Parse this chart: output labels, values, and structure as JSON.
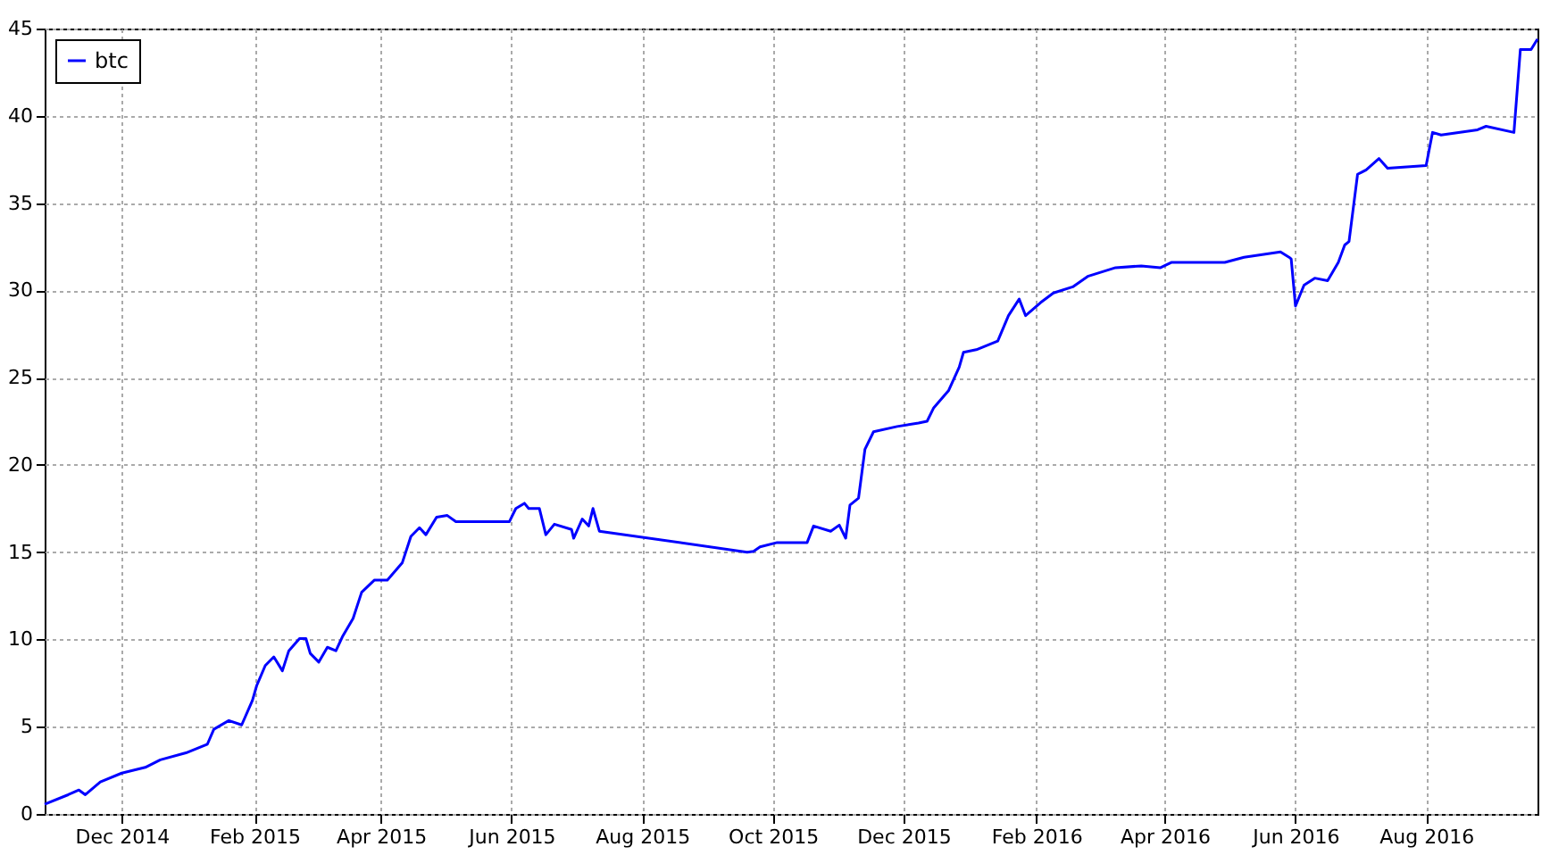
{
  "chart_data": {
    "type": "line",
    "x": [
      "2014-10-26",
      "2014-11-06",
      "2014-11-11",
      "2014-11-14",
      "2014-11-21",
      "2014-12-01",
      "2014-12-12",
      "2014-12-19",
      "2014-12-31",
      "2015-01-10",
      "2015-01-13",
      "2015-01-20",
      "2015-01-26",
      "2015-01-31",
      "2015-02-02",
      "2015-02-06",
      "2015-02-10",
      "2015-02-14",
      "2015-02-17",
      "2015-02-22",
      "2015-02-25",
      "2015-02-27",
      "2015-03-03",
      "2015-03-07",
      "2015-03-11",
      "2015-03-14",
      "2015-03-19",
      "2015-03-23",
      "2015-03-29",
      "2015-04-04",
      "2015-04-11",
      "2015-04-15",
      "2015-04-19",
      "2015-04-22",
      "2015-04-27",
      "2015-05-02",
      "2015-05-06",
      "2015-05-31",
      "2015-06-03",
      "2015-06-07",
      "2015-06-09",
      "2015-06-14",
      "2015-06-17",
      "2015-06-21",
      "2015-06-29",
      "2015-06-30",
      "2015-07-04",
      "2015-07-07",
      "2015-07-09",
      "2015-07-12",
      "2015-09-19",
      "2015-09-22",
      "2015-09-25",
      "2015-10-03",
      "2015-10-17",
      "2015-10-20",
      "2015-10-28",
      "2015-11-01",
      "2015-11-04",
      "2015-11-06",
      "2015-11-10",
      "2015-11-13",
      "2015-11-17",
      "2015-11-28",
      "2015-12-08",
      "2015-12-12",
      "2015-12-15",
      "2015-12-22",
      "2015-12-27",
      "2015-12-29",
      "2016-01-04",
      "2016-01-14",
      "2016-01-19",
      "2016-01-24",
      "2016-01-27",
      "2016-02-03",
      "2016-02-09",
      "2016-02-18",
      "2016-02-25",
      "2016-03-09",
      "2016-03-21",
      "2016-03-30",
      "2016-04-04",
      "2016-04-29",
      "2016-05-08",
      "2016-05-25",
      "2016-05-29",
      "2016-05-30",
      "2016-06-01",
      "2016-06-05",
      "2016-06-10",
      "2016-06-16",
      "2016-06-21",
      "2016-06-24",
      "2016-06-26",
      "2016-06-30",
      "2016-07-04",
      "2016-07-10",
      "2016-07-14",
      "2016-08-01",
      "2016-08-04",
      "2016-08-08",
      "2016-08-25",
      "2016-08-29",
      "2016-09-11",
      "2016-09-14",
      "2016-09-19",
      "2016-09-22"
    ],
    "series": [
      {
        "name": "btc",
        "color": "#0000ff",
        "values": [
          0.56,
          1.1,
          1.37,
          1.1,
          1.84,
          2.34,
          2.67,
          3.1,
          3.5,
          4.0,
          4.85,
          5.35,
          5.1,
          6.5,
          7.35,
          8.5,
          9.0,
          8.2,
          9.35,
          10.05,
          10.05,
          9.2,
          8.7,
          9.55,
          9.35,
          10.15,
          11.2,
          12.7,
          13.4,
          13.4,
          14.4,
          15.9,
          16.4,
          16.0,
          17.0,
          17.1,
          16.75,
          16.75,
          17.5,
          17.8,
          17.5,
          17.5,
          16.0,
          16.6,
          16.3,
          15.8,
          16.9,
          16.5,
          17.5,
          16.2,
          15.0,
          15.05,
          15.3,
          15.55,
          15.55,
          16.5,
          16.2,
          16.55,
          15.8,
          17.7,
          18.1,
          20.9,
          21.9,
          22.2,
          22.4,
          22.5,
          23.25,
          24.25,
          25.6,
          26.45,
          26.6,
          27.1,
          28.55,
          29.5,
          28.55,
          29.3,
          29.85,
          30.2,
          30.8,
          31.3,
          31.4,
          31.3,
          31.6,
          31.6,
          31.9,
          32.2,
          31.9,
          31.8,
          29.1,
          30.3,
          30.7,
          30.55,
          31.6,
          32.6,
          32.8,
          36.65,
          36.9,
          37.55,
          37.0,
          37.15,
          39.05,
          38.9,
          39.2,
          39.4,
          39.05,
          43.8,
          43.8,
          44.4
        ]
      }
    ],
    "xlim": [
      "2014-10-26",
      "2016-09-22"
    ],
    "xticks": [
      {
        "value": "2014-12-01",
        "label": "Dec 2014"
      },
      {
        "value": "2015-02-01",
        "label": "Feb 2015"
      },
      {
        "value": "2015-04-01",
        "label": "Apr 2015"
      },
      {
        "value": "2015-06-01",
        "label": "Jun 2015"
      },
      {
        "value": "2015-08-01",
        "label": "Aug 2015"
      },
      {
        "value": "2015-10-01",
        "label": "Oct 2015"
      },
      {
        "value": "2015-12-01",
        "label": "Dec 2015"
      },
      {
        "value": "2016-02-01",
        "label": "Feb 2016"
      },
      {
        "value": "2016-04-01",
        "label": "Apr 2016"
      },
      {
        "value": "2016-06-01",
        "label": "Jun 2016"
      },
      {
        "value": "2016-08-01",
        "label": "Aug 2016"
      }
    ],
    "ylim": [
      0,
      45
    ],
    "yticks": [
      0,
      5,
      10,
      15,
      20,
      25,
      30,
      35,
      40,
      45
    ],
    "grid": true,
    "legend": "top left"
  }
}
